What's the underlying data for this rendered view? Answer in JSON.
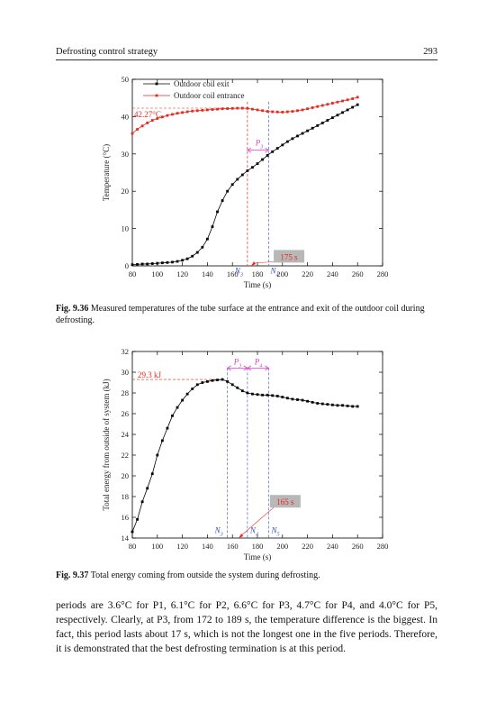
{
  "header": {
    "title": "Defrosting control strategy",
    "page": "293"
  },
  "figures": [
    {
      "caption_label": "Fig. 9.36",
      "caption_text": " Measured temperatures of the tube surface at the entrance and exit of the outdoor coil during defrosting."
    },
    {
      "caption_label": "Fig. 9.37",
      "caption_text": " Total energy coming from outside the system during defrosting."
    }
  ],
  "chart_data": [
    {
      "type": "line",
      "xlabel": "Time (s)",
      "ylabel": "Temperature (°C)",
      "xlim": [
        80,
        280
      ],
      "ylim": [
        0,
        50
      ],
      "xticks": [
        "80",
        "100",
        "120",
        "140",
        "160",
        "180",
        "200",
        "220",
        "240",
        "260",
        "280"
      ],
      "yticks": [
        "0",
        "10",
        "20",
        "30",
        "40",
        "50"
      ],
      "legend_position": "top-left",
      "colors": {
        "exit": "#000000",
        "entrance": "#e8281e"
      },
      "series": [
        {
          "name": "Outdoor coil exit",
          "x": [
            80,
            84,
            88,
            92,
            96,
            100,
            104,
            108,
            112,
            116,
            120,
            124,
            128,
            132,
            136,
            140,
            144,
            148,
            152,
            156,
            160,
            164,
            168,
            172,
            176,
            180,
            184,
            188,
            192,
            196,
            200,
            204,
            208,
            212,
            216,
            220,
            224,
            228,
            232,
            236,
            240,
            244,
            248,
            252,
            256,
            260
          ],
          "y": [
            0.3,
            0.4,
            0.5,
            0.5,
            0.6,
            0.7,
            0.8,
            0.9,
            1.0,
            1.2,
            1.5,
            1.9,
            2.6,
            3.6,
            5.0,
            7.2,
            10.5,
            14.5,
            17.5,
            20.0,
            21.8,
            23.2,
            24.4,
            25.5,
            26.4,
            27.4,
            28.5,
            29.6,
            30.6,
            31.5,
            32.4,
            33.3,
            34.1,
            34.8,
            35.5,
            36.2,
            36.9,
            37.6,
            38.3,
            39.0,
            39.7,
            40.4,
            41.1,
            41.8,
            42.5,
            43.2
          ]
        },
        {
          "name": "Outdoor coil entrance",
          "x": [
            80,
            84,
            88,
            92,
            96,
            100,
            104,
            108,
            112,
            116,
            120,
            124,
            128,
            132,
            136,
            140,
            144,
            148,
            152,
            156,
            160,
            164,
            168,
            172,
            176,
            180,
            184,
            188,
            192,
            196,
            200,
            204,
            208,
            212,
            216,
            220,
            224,
            228,
            232,
            236,
            240,
            244,
            248,
            252,
            256,
            260
          ],
          "y": [
            35.5,
            36.6,
            37.5,
            38.3,
            39.0,
            39.5,
            39.9,
            40.3,
            40.6,
            40.9,
            41.1,
            41.3,
            41.5,
            41.6,
            41.7,
            41.8,
            41.9,
            42.0,
            42.1,
            42.15,
            42.2,
            42.25,
            42.27,
            42.2,
            42.0,
            41.8,
            41.6,
            41.4,
            41.3,
            41.25,
            41.2,
            41.3,
            41.4,
            41.6,
            41.8,
            42.1,
            42.4,
            42.7,
            43.0,
            43.3,
            43.6,
            43.9,
            44.2,
            44.5,
            44.8,
            45.2
          ]
        }
      ],
      "annotations": {
        "peak_label": "42.27°C",
        "period_label": "P",
        "period_sub": "3",
        "n_left": "N",
        "n_left_sub": "3",
        "n_right": "N",
        "n_right_sub": "4",
        "time_badge": "175 s",
        "period_range": [
          172,
          189
        ],
        "arrow_x": 175
      }
    },
    {
      "type": "line",
      "xlabel": "Time (s)",
      "ylabel": "Total energy from outside of system (kJ)",
      "xlim": [
        80,
        280
      ],
      "ylim": [
        14,
        32
      ],
      "xticks": [
        "80",
        "100",
        "120",
        "140",
        "160",
        "180",
        "200",
        "220",
        "240",
        "260",
        "280"
      ],
      "yticks": [
        "14",
        "16",
        "18",
        "20",
        "22",
        "24",
        "26",
        "28",
        "30",
        "32"
      ],
      "colors": {
        "line": "#000000"
      },
      "series": [
        {
          "x": [
            80,
            84,
            88,
            92,
            96,
            100,
            104,
            108,
            112,
            116,
            120,
            124,
            128,
            132,
            136,
            140,
            144,
            148,
            152,
            156,
            160,
            164,
            168,
            172,
            176,
            180,
            184,
            188,
            192,
            196,
            200,
            204,
            208,
            212,
            216,
            220,
            224,
            228,
            232,
            236,
            240,
            244,
            248,
            252,
            256,
            260
          ],
          "y": [
            14.6,
            15.8,
            17.5,
            18.8,
            20.2,
            22.0,
            23.4,
            24.6,
            25.8,
            26.6,
            27.3,
            27.9,
            28.4,
            28.8,
            29.0,
            29.1,
            29.2,
            29.25,
            29.3,
            29.1,
            28.8,
            28.5,
            28.2,
            28.0,
            27.9,
            27.85,
            27.8,
            27.8,
            27.75,
            27.7,
            27.6,
            27.5,
            27.4,
            27.35,
            27.3,
            27.2,
            27.1,
            27.0,
            26.95,
            26.9,
            26.85,
            26.8,
            26.8,
            26.75,
            26.7,
            26.7
          ]
        }
      ],
      "annotations": {
        "peak_label": "29.3 kJ",
        "p3_label": "P",
        "p3_sub": "3",
        "p4_label": "P",
        "p4_sub": "4",
        "n3": "N",
        "n3_sub": "3",
        "n4": "N",
        "n4_sub": "4",
        "n5": "N",
        "n5_sub": "5",
        "time_badge": "165 s",
        "markers_x": [
          156,
          172,
          189
        ],
        "arrow_x": 165
      }
    }
  ],
  "body": {
    "text": "periods are 3.6°C for P1, 6.1°C for P2, 6.6°C for P3, 4.7°C for P4, and 4.0°C for P5, respectively. Clearly, at P3, from 172 to 189 s, the temperature difference is the biggest. In fact, this period lasts about 17 s, which is not the longest one in the five periods. Therefore, it is demonstrated that the best defrosting termination is at this period."
  }
}
